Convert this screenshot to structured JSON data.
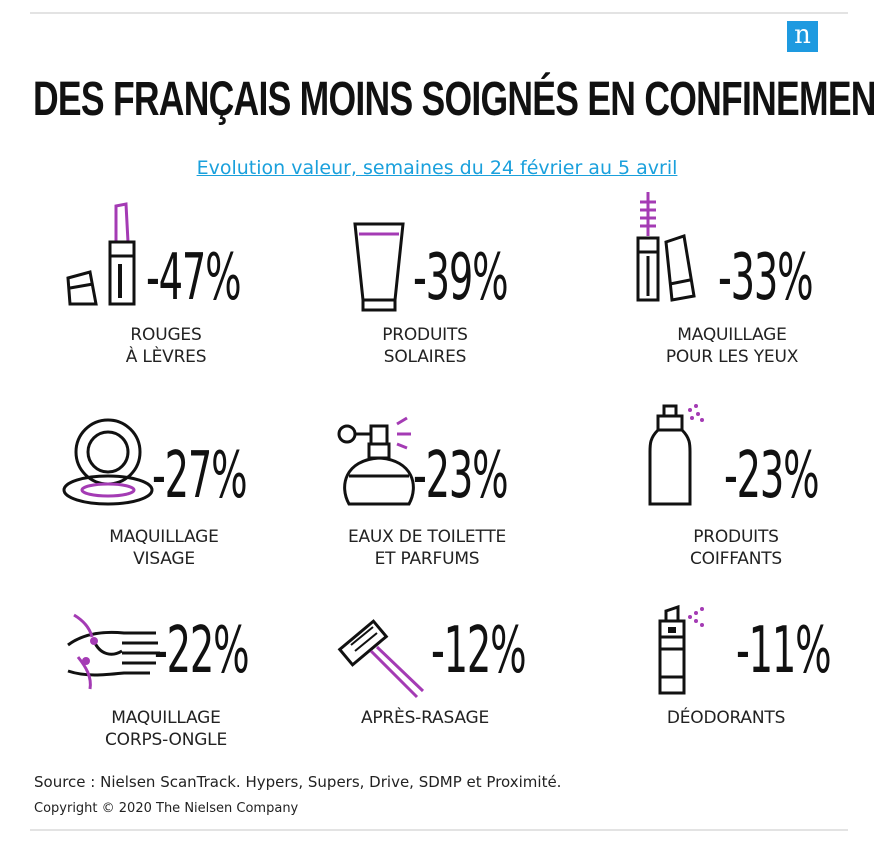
{
  "header": {
    "logo_letter": "n",
    "title": "DES FRANÇAIS MOINS SOIGNÉS EN CONFINEMENT",
    "subtitle": "Evolution valeur, semaines du 24 février au 5 avril"
  },
  "colors": {
    "accent": "#a43bb4",
    "link": "#1aa0dc",
    "logo_bg": "#1e9ae0"
  },
  "items": [
    {
      "icon": "lipstick-icon",
      "value": "-47%",
      "label": [
        "ROUGES",
        "À LÈVRES"
      ]
    },
    {
      "icon": "sunscreen-tube-icon",
      "value": "-39%",
      "label": [
        "PRODUITS",
        "SOLAIRES"
      ]
    },
    {
      "icon": "mascara-icon",
      "value": "-33%",
      "label": [
        "MAQUILLAGE",
        "POUR LES YEUX"
      ]
    },
    {
      "icon": "compact-powder-icon",
      "value": "-27%",
      "label": [
        "MAQUILLAGE",
        "VISAGE"
      ]
    },
    {
      "icon": "perfume-bottle-icon",
      "value": "-23%",
      "label": [
        "EAUX DE TOILETTE",
        "ET PARFUMS"
      ]
    },
    {
      "icon": "hairspray-icon",
      "value": "-23%",
      "label": [
        "PRODUITS",
        "COIFFANTS"
      ]
    },
    {
      "icon": "hand-nail-icon",
      "value": "-22%",
      "label": [
        "MAQUILLAGE",
        "CORPS-ONGLE"
      ]
    },
    {
      "icon": "razor-icon",
      "value": "-12%",
      "label": [
        "APRÈS-RASAGE"
      ]
    },
    {
      "icon": "deodorant-icon",
      "value": "-11%",
      "label": [
        "DÉODORANTS"
      ]
    }
  ],
  "footer": {
    "source": "Source : Nielsen ScanTrack. Hypers, Supers, Drive, SDMP et Proximité.",
    "copyright": "Copyright © 2020 The Nielsen Company"
  }
}
